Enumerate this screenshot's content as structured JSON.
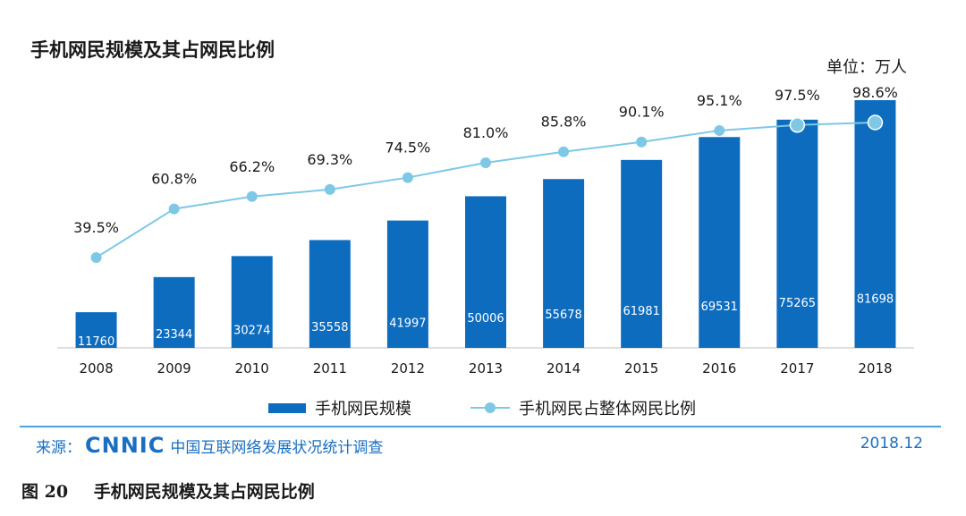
{
  "title": "手机网民规模及其占网民比例",
  "unit_label": "单位：万人",
  "chart_data": {
    "type": "bar",
    "categories": [
      "2008",
      "2009",
      "2010",
      "2011",
      "2012",
      "2013",
      "2014",
      "2015",
      "2016",
      "2017",
      "2018"
    ],
    "series": [
      {
        "name": "手机网民规模",
        "type": "bar",
        "values": [
          11760,
          23344,
          30274,
          35558,
          41997,
          50006,
          55678,
          61981,
          69531,
          75265,
          81698
        ],
        "labels": [
          "11760",
          "23344",
          "30274",
          "35558",
          "41997",
          "50006",
          "55678",
          "61981",
          "69531",
          "75265",
          "81698"
        ],
        "color": "#0e6cbf"
      },
      {
        "name": "手机网民占整体网民比例",
        "type": "line",
        "values": [
          39.5,
          60.8,
          66.2,
          69.3,
          74.5,
          81.0,
          85.8,
          90.1,
          95.1,
          97.5,
          98.6
        ],
        "labels": [
          "39.5%",
          "60.8%",
          "66.2%",
          "69.3%",
          "74.5%",
          "81.0%",
          "85.8%",
          "90.1%",
          "95.1%",
          "97.5%",
          "98.6%"
        ],
        "color": "#7ec8e6"
      }
    ],
    "legend_position": "bottom",
    "grid": false
  },
  "legend": {
    "bar_label": "手机网民规模",
    "line_label": "手机网民占整体网民比例"
  },
  "footer": {
    "source_prefix": "来源：",
    "logo_text": "CNNIC",
    "source_text": "中国互联网络发展状况统计调查",
    "date": "2018.12"
  },
  "caption": {
    "figure_number": "图 20",
    "text": "手机网民规模及其占网民比例"
  }
}
